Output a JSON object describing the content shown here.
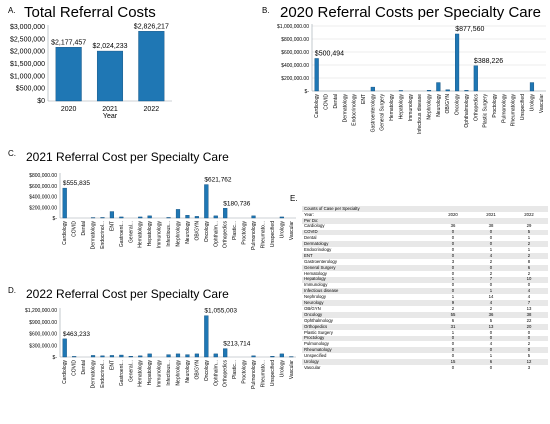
{
  "colors": {
    "bar": "#1f77b4",
    "bar_edge": "#0b4a7a",
    "axis": "#9aa3ad",
    "grid": "#d9d9d9",
    "table_stripe": "#e8e8e8"
  },
  "panel_labels": {
    "a": "A.",
    "b": "B.",
    "c": "C.",
    "d": "D.",
    "e": "E."
  },
  "specialties": [
    "Cardiology",
    "COVID",
    "Dental",
    "Dermatology",
    "Endocrinology",
    "ENT",
    "Gastroenterology",
    "General Surgery",
    "Hematology",
    "Hepatology",
    "Immunology",
    "Infectious disease",
    "Nephrology",
    "Neurology",
    "OB/GYN",
    "Oncology",
    "Ophthalmology",
    "Orthopedics",
    "Plastic Surgery",
    "Proctology",
    "Pulmonology",
    "Rheumatology",
    "Unspecified",
    "Urology",
    "Vascular"
  ],
  "chart_data": [
    {
      "id": "A",
      "type": "bar",
      "title": "Total Referral Costs",
      "xlabel": "Year",
      "ylabel": "",
      "categories": [
        "2020",
        "2021",
        "2022"
      ],
      "values": [
        2177457,
        2024233,
        2826217
      ],
      "data_labels": [
        "$2,177,457",
        "$2,024,233",
        "$2,826,217"
      ],
      "ylim": [
        0,
        3000000
      ],
      "yticks": [
        0,
        500000,
        1000000,
        1500000,
        2000000,
        2500000,
        3000000
      ],
      "ytick_labels": [
        "$0",
        "$500,000",
        "$1,000,000",
        "$1,500,000",
        "$2,000,000",
        "$2,500,000",
        "$3,000,000"
      ],
      "grid": false,
      "legend": "none"
    },
    {
      "id": "B",
      "type": "bar",
      "title": "2020 Referral Costs per Specialty Care",
      "xlabel": "",
      "ylabel": "",
      "categories": [
        "Cardiology",
        "COVID",
        "Dental",
        "Dermatology",
        "Endocrinology",
        "ENT",
        "Gastroenterology",
        "General Surgery",
        "Hematology",
        "Hepatology",
        "Immunology",
        "Infectious disease",
        "Nephrology",
        "Neurology",
        "OB/GYN",
        "Oncology",
        "Ophthalmology",
        "Orthopedics",
        "Plastic Surgery",
        "Proctology",
        "Pulmonology",
        "Rheumatology",
        "Unspecified",
        "Urology",
        "Vascular"
      ],
      "values": [
        500494,
        0,
        0,
        0,
        0,
        0,
        60000,
        0,
        0,
        8000,
        0,
        0,
        12000,
        130000,
        20000,
        877560,
        10000,
        388226,
        0,
        0,
        0,
        0,
        0,
        130000,
        0
      ],
      "data_labels": {
        "0": "$500,494",
        "15": "$877,560",
        "17": "$388,226"
      },
      "ylim": [
        0,
        1000000
      ],
      "yticks": [
        0,
        200000,
        400000,
        600000,
        800000,
        1000000
      ],
      "ytick_labels": [
        "$-",
        "$200,000.00",
        "$400,000.00",
        "$600,000.00",
        "$800,000.00",
        "$1,000,000.00"
      ],
      "grid": true,
      "legend": "none"
    },
    {
      "id": "C",
      "type": "bar",
      "title": "2021 Referral Cost per Specialty Care",
      "xlabel": "",
      "ylabel": "",
      "categories": [
        "Cardiology",
        "COVID",
        "Dental",
        "Dermatology",
        "Endocrinol...",
        "ENT",
        "Gastroent...",
        "General...",
        "Hematology",
        "Hepatology",
        "Immunology",
        "Infectious...",
        "Nephrology",
        "Neurology",
        "OB/GYN",
        "Oncology",
        "Ophthalm...",
        "Orthopedics",
        "Plastic...",
        "Proctology",
        "Pulmonology",
        "Rheumato...",
        "Unspecified",
        "Urology",
        "Vascular"
      ],
      "values": [
        555835,
        0,
        0,
        8000,
        10000,
        120000,
        20000,
        0,
        20000,
        40000,
        0,
        10000,
        160000,
        50000,
        30000,
        621762,
        40000,
        180736,
        0,
        0,
        40000,
        0,
        0,
        20000,
        0
      ],
      "data_labels": {
        "0": "$555,835",
        "15": "$621,762",
        "17": "$180,736"
      },
      "ylim": [
        0,
        800000
      ],
      "yticks": [
        0,
        200000,
        400000,
        600000,
        800000
      ],
      "ytick_labels": [
        "$-",
        "$200,000.00",
        "$400,000.00",
        "$600,000.00",
        "$800,000.00"
      ],
      "grid": false,
      "legend": "none"
    },
    {
      "id": "D",
      "type": "bar",
      "title": "2022 Referral Cost per Specialty Care",
      "xlabel": "",
      "ylabel": "",
      "categories": [
        "Cardiology",
        "COVID",
        "Dental",
        "Dermatology",
        "Endocrinol...",
        "ENT",
        "Gastroent...",
        "General...",
        "Hematology",
        "Hepatology",
        "Immunology",
        "Infectious...",
        "Nephrology",
        "Neurology",
        "OB/GYN",
        "Oncology",
        "Ophthalm...",
        "Orthopedics",
        "Plastic...",
        "Proctology",
        "Pulmonology",
        "Rheumato...",
        "Unspecified",
        "Urology",
        "Vascular"
      ],
      "values": [
        463233,
        15000,
        0,
        40000,
        30000,
        40000,
        50000,
        20000,
        30000,
        80000,
        0,
        60000,
        80000,
        60000,
        80000,
        1055003,
        80000,
        213714,
        0,
        0,
        30000,
        0,
        20000,
        80000,
        10000
      ],
      "data_labels": {
        "0": "$463,233",
        "15": "$1,055,003",
        "17": "$213,714"
      },
      "ylim": [
        0,
        1200000
      ],
      "yticks": [
        0,
        300000,
        600000,
        900000,
        1200000
      ],
      "ytick_labels": [
        "$-",
        "$300,000.00",
        "$600,000.00",
        "$900,000.00",
        "$1,200,000.00"
      ],
      "grid": false,
      "legend": "none"
    },
    {
      "id": "E",
      "type": "table",
      "title": "Counts of Case per Specialty",
      "header_label": "Year:",
      "subheader_label": "Per Dx:",
      "columns": [
        "2020",
        "2021",
        "2022"
      ],
      "rows": [
        {
          "name": "Cardiology",
          "values": [
            "36",
            "38",
            "29"
          ]
        },
        {
          "name": "COVID",
          "values": [
            "0",
            "0",
            "5"
          ]
        },
        {
          "name": "Dental",
          "values": [
            "0",
            "0",
            "1"
          ]
        },
        {
          "name": "Dermatology",
          "values": [
            "0",
            "0",
            "2"
          ]
        },
        {
          "name": "Endocrinology",
          "values": [
            "0",
            "1",
            "1"
          ]
        },
        {
          "name": "ENT",
          "values": [
            "0",
            "4",
            "2"
          ]
        },
        {
          "name": "Gastroenterology",
          "values": [
            "3",
            "2",
            "8"
          ]
        },
        {
          "name": "General Surgery",
          "values": [
            "0",
            "0",
            "6"
          ]
        },
        {
          "name": "Hematology",
          "values": [
            "0",
            "2",
            "2"
          ]
        },
        {
          "name": "Hepatology",
          "values": [
            "1",
            "7",
            "10"
          ]
        },
        {
          "name": "Immunology",
          "values": [
            "0",
            "0",
            "0"
          ]
        },
        {
          "name": "Infectious disease",
          "values": [
            "0",
            "1",
            "4"
          ]
        },
        {
          "name": "Nephrology",
          "values": [
            "1",
            "14",
            "4"
          ]
        },
        {
          "name": "Neurology",
          "values": [
            "9",
            "4",
            "7"
          ]
        },
        {
          "name": "OB/GYN",
          "values": [
            "2",
            "2",
            "13"
          ]
        },
        {
          "name": "Oncology",
          "values": [
            "55",
            "36",
            "38"
          ]
        },
        {
          "name": "Ophthalmology",
          "values": [
            "6",
            "5",
            "22"
          ]
        },
        {
          "name": "Orthopedics",
          "values": [
            "31",
            "13",
            "20"
          ]
        },
        {
          "name": "Plastic Surgery",
          "values": [
            "1",
            "0",
            "0"
          ]
        },
        {
          "name": "Proctology",
          "values": [
            "0",
            "0",
            "0"
          ]
        },
        {
          "name": "Pulmonology",
          "values": [
            "0",
            "4",
            "2"
          ]
        },
        {
          "name": "Rheumatology",
          "values": [
            "0",
            "0",
            "0"
          ]
        },
        {
          "name": "Unspecified",
          "values": [
            "0",
            "1",
            "5"
          ]
        },
        {
          "name": "Urology",
          "values": [
            "15",
            "6",
            "12"
          ]
        },
        {
          "name": "Vascular",
          "values": [
            "0",
            "0",
            "3"
          ]
        }
      ]
    }
  ]
}
